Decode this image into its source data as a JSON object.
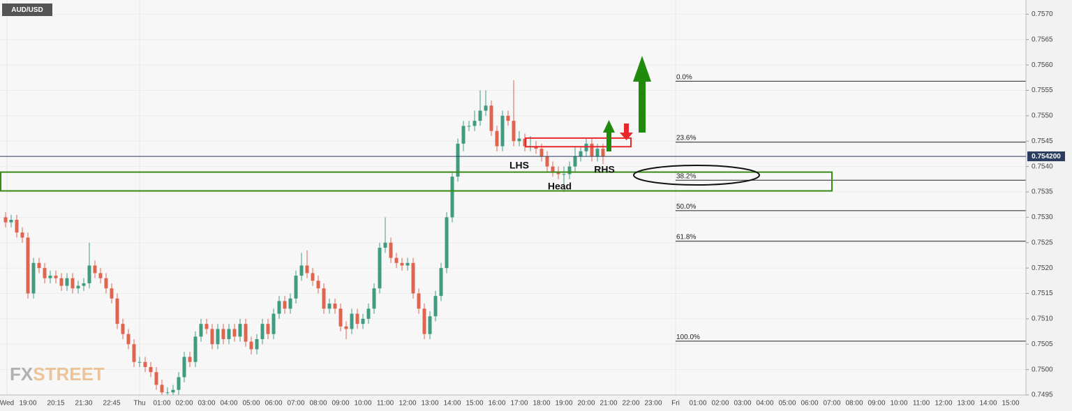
{
  "chart_data": {
    "type": "candlestick",
    "title": "AUD/USD",
    "watermark": {
      "first": "FX",
      "second": "STREET"
    },
    "up_color": "#3f9c80",
    "down_color": "#e0654f",
    "xlim": [
      -6.25,
      39.6875
    ],
    "ylim": [
      0.7495,
      0.75728
    ],
    "grid": true,
    "yticks": [
      0.7495,
      {
        "value": 0.75,
        "label": "0.7500"
      },
      0.7505,
      {
        "value": 0.751,
        "label": "0.7510"
      },
      0.7515,
      {
        "value": 0.752,
        "label": "0.7520"
      },
      0.7525,
      {
        "value": 0.753,
        "label": "0.7530"
      },
      0.7535,
      {
        "value": 0.754,
        "label": "0.7540"
      },
      0.7545,
      {
        "value": 0.755,
        "label": "0.7550"
      },
      0.7555,
      {
        "value": 0.756,
        "label": "0.7560"
      },
      0.7565,
      {
        "value": 0.757,
        "label": "0.7570"
      }
    ],
    "xticks": [
      {
        "value": -5.94,
        "label": "Wed"
      },
      {
        "value": -5,
        "label": "19:00"
      },
      {
        "value": -3.75,
        "label": "20:15"
      },
      {
        "value": -2.5,
        "label": "21:30"
      },
      {
        "value": -1.25,
        "label": "22:45"
      },
      {
        "value": 0,
        "label": "Thu"
      },
      {
        "value": 1,
        "label": "01:00"
      },
      {
        "value": 2,
        "label": "02:00"
      },
      {
        "value": 3,
        "label": "03:00"
      },
      {
        "value": 4,
        "label": "04:00"
      },
      {
        "value": 5,
        "label": "05:00"
      },
      {
        "value": 6,
        "label": "06:00"
      },
      {
        "value": 7,
        "label": "07:00"
      },
      {
        "value": 8,
        "label": "08:00"
      },
      {
        "value": 9,
        "label": "09:00"
      },
      {
        "value": 10,
        "label": "10:00"
      },
      {
        "value": 11,
        "label": "11:00"
      },
      {
        "value": 12,
        "label": "12:00"
      },
      {
        "value": 13,
        "label": "13:00"
      },
      {
        "value": 14,
        "label": "14:00"
      },
      {
        "value": 15,
        "label": "15:00"
      },
      {
        "value": 16,
        "label": "16:00"
      },
      {
        "value": 17,
        "label": "17:00"
      },
      {
        "value": 18,
        "label": "18:00"
      },
      {
        "value": 19,
        "label": "19:00"
      },
      {
        "value": 20,
        "label": "20:00"
      },
      {
        "value": 21,
        "label": "21:00"
      },
      {
        "value": 22,
        "label": "22:00"
      },
      {
        "value": 23,
        "label": "23:00"
      },
      {
        "value": 24,
        "label": "Fri"
      },
      {
        "value": 25,
        "label": "01:00"
      },
      {
        "value": 26,
        "label": "02:00"
      },
      {
        "value": 27,
        "label": "03:00"
      },
      {
        "value": 28,
        "label": "04:00"
      },
      {
        "value": 29,
        "label": "05:00"
      },
      {
        "value": 30,
        "label": "06:00"
      },
      {
        "value": 31,
        "label": "07:00"
      },
      {
        "value": 32,
        "label": "08:00"
      },
      {
        "value": 33,
        "label": "09:00"
      },
      {
        "value": 34,
        "label": "10:00"
      },
      {
        "value": 35,
        "label": "11:00"
      },
      {
        "value": 36,
        "label": "12:00"
      },
      {
        "value": 37,
        "label": "13:00"
      },
      {
        "value": 38,
        "label": "14:00"
      },
      {
        "value": 39,
        "label": "15:00"
      }
    ],
    "x": [
      -6,
      -5.75,
      -5.5,
      -5.25,
      -5,
      -4.75,
      -4.5,
      -4.25,
      -4,
      -3.75,
      -3.5,
      -3.25,
      -3,
      -2.75,
      -2.5,
      -2.25,
      -2,
      -1.75,
      -1.5,
      -1.25,
      -1,
      -0.75,
      -0.5,
      -0.25,
      0,
      0.25,
      0.5,
      0.75,
      1,
      1.25,
      1.5,
      1.75,
      2,
      2.25,
      2.5,
      2.75,
      3,
      3.25,
      3.5,
      3.75,
      4,
      4.25,
      4.5,
      4.75,
      5,
      5.25,
      5.5,
      5.75,
      6,
      6.25,
      6.5,
      6.75,
      7,
      7.25,
      7.5,
      7.75,
      8,
      8.25,
      8.5,
      8.75,
      9,
      9.25,
      9.5,
      9.75,
      10,
      10.25,
      10.5,
      10.75,
      11,
      11.25,
      11.5,
      11.75,
      12,
      12.25,
      12.5,
      12.75,
      13,
      13.25,
      13.5,
      13.75,
      14,
      14.25,
      14.5,
      14.75,
      15,
      15.25,
      15.5,
      15.75,
      16,
      16.25,
      16.5,
      16.75,
      17,
      17.25,
      17.5,
      17.75,
      18,
      18.25,
      18.5,
      18.75,
      19,
      19.25,
      19.5,
      19.75,
      20,
      20.25,
      20.5,
      20.75
    ],
    "open": [
      0.753,
      0.7529,
      0.75295,
      0.7527,
      0.7526,
      0.7515,
      0.7521,
      0.752,
      0.7518,
      0.75185,
      0.7518,
      0.75165,
      0.7518,
      0.7516,
      0.75165,
      0.7517,
      0.75205,
      0.7519,
      0.7518,
      0.7516,
      0.7514,
      0.7509,
      0.7507,
      0.7505,
      0.75015,
      0.75015,
      0.75005,
      0.74995,
      0.7497,
      0.74955,
      0.74955,
      0.7496,
      0.74985,
      0.75025,
      0.75015,
      0.75065,
      0.7509,
      0.7508,
      0.7505,
      0.7508,
      0.7506,
      0.7508,
      0.75065,
      0.7509,
      0.75055,
      0.7504,
      0.7506,
      0.7509,
      0.7507,
      0.7511,
      0.75135,
      0.7512,
      0.7514,
      0.75185,
      0.75205,
      0.7519,
      0.75175,
      0.7516,
      0.7512,
      0.7513,
      0.7512,
      0.75085,
      0.7508,
      0.7511,
      0.7509,
      0.751,
      0.7512,
      0.7516,
      0.7524,
      0.7525,
      0.7522,
      0.7521,
      0.75205,
      0.7521,
      0.7515,
      0.7512,
      0.7507,
      0.75105,
      0.75145,
      0.752,
      0.753,
      0.7538,
      0.75445,
      0.7548,
      0.7548,
      0.7549,
      0.7551,
      0.7552,
      0.7547,
      0.7544,
      0.755,
      0.7549,
      0.7545,
      0.75455,
      0.7544,
      0.7544,
      0.75435,
      0.7542,
      0.754,
      0.7539,
      0.75385,
      0.75385,
      0.754,
      0.7542,
      0.7543,
      0.75445,
      0.7542,
      0.75435
    ],
    "high": [
      0.7531,
      0.75305,
      0.75305,
      0.7528,
      0.7527,
      0.7522,
      0.7522,
      0.7521,
      0.75195,
      0.75195,
      0.7519,
      0.7519,
      0.7519,
      0.75175,
      0.7518,
      0.7525,
      0.75215,
      0.752,
      0.7519,
      0.7517,
      0.7515,
      0.751,
      0.7508,
      0.7506,
      0.75025,
      0.75025,
      0.75015,
      0.75005,
      0.7498,
      0.74965,
      0.7497,
      0.74995,
      0.75035,
      0.75035,
      0.75075,
      0.751,
      0.751,
      0.7509,
      0.7509,
      0.7509,
      0.7509,
      0.7509,
      0.751,
      0.751,
      0.75065,
      0.7507,
      0.751,
      0.751,
      0.7512,
      0.75145,
      0.75145,
      0.7515,
      0.75195,
      0.7523,
      0.75235,
      0.752,
      0.75185,
      0.7517,
      0.7514,
      0.7514,
      0.7513,
      0.75095,
      0.7512,
      0.7512,
      0.7511,
      0.7513,
      0.7517,
      0.7525,
      0.753,
      0.7526,
      0.7523,
      0.7522,
      0.7522,
      0.7522,
      0.7516,
      0.7513,
      0.75115,
      0.75155,
      0.7521,
      0.7531,
      0.7539,
      0.75455,
      0.7549,
      0.7549,
      0.7551,
      0.7555,
      0.7555,
      0.7553,
      0.7548,
      0.7551,
      0.7551,
      0.7557,
      0.7547,
      0.75465,
      0.7546,
      0.7545,
      0.75445,
      0.7543,
      0.7541,
      0.754,
      0.754,
      0.7541,
      0.7544,
      0.7544,
      0.75455,
      0.75455,
      0.75445,
      0.75445
    ],
    "low": [
      0.7528,
      0.7528,
      0.7526,
      0.7525,
      0.7514,
      0.7514,
      0.7519,
      0.7517,
      0.7517,
      0.7517,
      0.75155,
      0.75155,
      0.7515,
      0.7515,
      0.75155,
      0.7516,
      0.7518,
      0.7517,
      0.7515,
      0.7513,
      0.7508,
      0.7506,
      0.7504,
      0.75005,
      0.75005,
      0.74995,
      0.74985,
      0.7496,
      0.74945,
      0.74945,
      0.74945,
      0.7495,
      0.74975,
      0.75005,
      0.75005,
      0.75055,
      0.7507,
      0.7504,
      0.7504,
      0.7505,
      0.7505,
      0.75055,
      0.75055,
      0.75045,
      0.7503,
      0.7503,
      0.7505,
      0.7506,
      0.7506,
      0.751,
      0.7511,
      0.7511,
      0.7513,
      0.75175,
      0.7518,
      0.75165,
      0.7515,
      0.7511,
      0.7511,
      0.7511,
      0.75075,
      0.7506,
      0.7507,
      0.7508,
      0.7508,
      0.7509,
      0.7511,
      0.7515,
      0.7523,
      0.7521,
      0.752,
      0.75195,
      0.75195,
      0.7514,
      0.7511,
      0.7506,
      0.7506,
      0.75095,
      0.75135,
      0.7519,
      0.7529,
      0.7537,
      0.7543,
      0.7547,
      0.7547,
      0.7548,
      0.755,
      0.7546,
      0.7543,
      0.7543,
      0.7548,
      0.7544,
      0.7544,
      0.7543,
      0.7543,
      0.75425,
      0.7541,
      0.7539,
      0.7538,
      0.75375,
      0.7535,
      0.75375,
      0.7539,
      0.7541,
      0.7542,
      0.7541,
      0.7541,
      0.75405
    ],
    "close": [
      0.7529,
      0.75295,
      0.7527,
      0.7526,
      0.7515,
      0.7521,
      0.752,
      0.7518,
      0.75185,
      0.7518,
      0.75165,
      0.7518,
      0.7516,
      0.75165,
      0.7517,
      0.75205,
      0.7519,
      0.7518,
      0.7516,
      0.7514,
      0.7509,
      0.7507,
      0.7505,
      0.75015,
      0.75015,
      0.75005,
      0.74995,
      0.7497,
      0.74955,
      0.74955,
      0.7496,
      0.74985,
      0.75025,
      0.75015,
      0.75065,
      0.7509,
      0.7508,
      0.7505,
      0.7508,
      0.7506,
      0.7508,
      0.75065,
      0.7509,
      0.75055,
      0.7504,
      0.7506,
      0.7509,
      0.7507,
      0.7511,
      0.75135,
      0.7512,
      0.7514,
      0.75185,
      0.75205,
      0.7519,
      0.75175,
      0.7516,
      0.7512,
      0.7513,
      0.7512,
      0.75085,
      0.7508,
      0.7511,
      0.7509,
      0.751,
      0.7512,
      0.7516,
      0.7524,
      0.7525,
      0.7522,
      0.7521,
      0.75205,
      0.7521,
      0.7515,
      0.7512,
      0.7507,
      0.75105,
      0.75145,
      0.752,
      0.753,
      0.7538,
      0.75445,
      0.7548,
      0.7548,
      0.7549,
      0.7551,
      0.7552,
      0.7547,
      0.7544,
      0.755,
      0.7549,
      0.7545,
      0.75455,
      0.7544,
      0.7544,
      0.75435,
      0.7542,
      0.754,
      0.7539,
      0.75385,
      0.75385,
      0.754,
      0.7542,
      0.7543,
      0.75445,
      0.7542,
      0.75435,
      0.7542
    ],
    "current_price": {
      "value": 0.7542,
      "label": "0.754200"
    },
    "fib_levels": [
      {
        "label": "0.0%",
        "value": 0.75568
      },
      {
        "label": "23.6%",
        "value": 0.75448
      },
      {
        "label": "38.2%",
        "value": 0.75373
      },
      {
        "label": "50.0%",
        "value": 0.75313
      },
      {
        "label": "61.8%",
        "value": 0.75253
      },
      {
        "label": "100.0%",
        "value": 0.75056
      }
    ],
    "zones": [
      {
        "color": "#3a8a17",
        "ylim": [
          0.75352,
          0.75389
        ]
      },
      {
        "color": "#e8292b",
        "ylim": [
          0.75439,
          0.75456
        ]
      }
    ],
    "annotations": [
      "LHS",
      "Head",
      "RHS"
    ]
  }
}
